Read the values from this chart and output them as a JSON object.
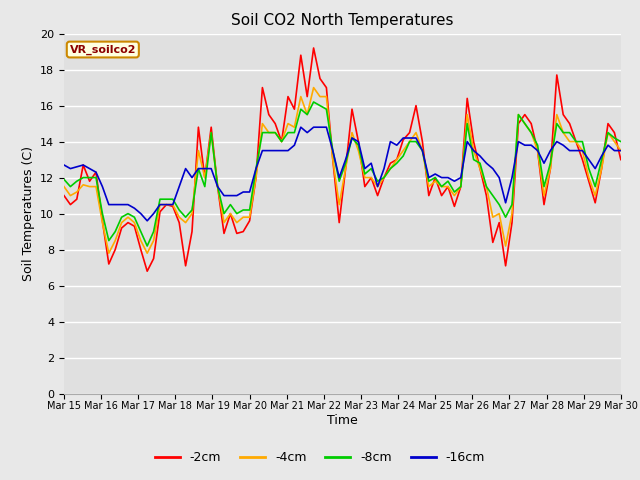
{
  "title": "Soil CO2 North Temperatures",
  "xlabel": "Time",
  "ylabel": "Soil Temperatures (C)",
  "ylim": [
    0,
    20
  ],
  "background_color": "#e8e8e8",
  "plot_bg_color": "#e0e0e0",
  "grid_color": "#ffffff",
  "legend_label": "VR_soilco2",
  "series_labels": [
    "-2cm",
    "-4cm",
    "-8cm",
    "-16cm"
  ],
  "series_colors": [
    "#ff0000",
    "#ffaa00",
    "#00cc00",
    "#0000cc"
  ],
  "x_tick_labels": [
    "Mar 15",
    "Mar 16",
    "Mar 17",
    "Mar 18",
    "Mar 19",
    "Mar 20",
    "Mar 21",
    "Mar 22",
    "Mar 23",
    "Mar 24",
    "Mar 25",
    "Mar 26",
    "Mar 27",
    "Mar 28",
    "Mar 29",
    "Mar 30"
  ],
  "data_2cm": [
    11.0,
    10.5,
    10.8,
    12.7,
    11.8,
    12.3,
    9.6,
    7.2,
    8.0,
    9.2,
    9.5,
    9.3,
    8.0,
    6.8,
    7.5,
    10.1,
    10.5,
    10.4,
    9.5,
    7.1,
    9.0,
    14.8,
    12.0,
    14.8,
    11.5,
    8.9,
    10.0,
    8.9,
    9.0,
    9.6,
    12.0,
    17.0,
    15.5,
    15.0,
    14.0,
    16.5,
    15.8,
    18.8,
    16.5,
    19.2,
    17.5,
    17.0,
    13.0,
    9.5,
    12.5,
    15.8,
    14.0,
    11.5,
    12.0,
    11.0,
    12.0,
    12.8,
    13.0,
    14.1,
    14.5,
    16.0,
    14.0,
    11.0,
    12.0,
    11.0,
    11.5,
    10.4,
    11.5,
    16.4,
    14.0,
    12.5,
    11.0,
    8.4,
    9.5,
    7.1,
    9.5,
    15.0,
    15.5,
    15.0,
    13.5,
    10.5,
    12.5,
    17.7,
    15.5,
    15.0,
    14.0,
    13.0,
    11.8,
    10.6,
    12.5,
    15.0,
    14.5,
    13.0
  ],
  "data_4cm": [
    11.5,
    11.0,
    11.2,
    11.6,
    11.5,
    11.5,
    9.5,
    7.8,
    8.5,
    9.5,
    9.8,
    9.5,
    8.5,
    7.8,
    8.5,
    10.5,
    10.5,
    10.5,
    9.8,
    9.5,
    10.0,
    13.5,
    12.0,
    14.5,
    11.5,
    9.5,
    10.0,
    9.5,
    9.8,
    9.8,
    12.0,
    15.0,
    14.5,
    14.5,
    14.0,
    15.0,
    14.8,
    16.5,
    15.5,
    17.0,
    16.5,
    16.5,
    13.0,
    10.5,
    12.5,
    14.5,
    13.5,
    12.0,
    12.0,
    11.5,
    12.0,
    12.5,
    13.0,
    13.5,
    14.0,
    14.5,
    13.5,
    11.5,
    11.8,
    11.5,
    11.5,
    11.0,
    11.5,
    15.5,
    13.5,
    12.5,
    11.5,
    9.8,
    10.0,
    8.2,
    10.0,
    15.5,
    15.0,
    14.5,
    13.5,
    11.0,
    12.5,
    15.5,
    14.5,
    14.0,
    14.0,
    13.5,
    12.0,
    11.0,
    12.5,
    14.5,
    14.0,
    13.5
  ],
  "data_8cm": [
    11.9,
    11.5,
    11.8,
    12.0,
    12.0,
    12.0,
    10.0,
    8.5,
    9.0,
    9.8,
    10.0,
    9.8,
    9.0,
    8.2,
    9.0,
    10.8,
    10.8,
    10.8,
    10.2,
    9.8,
    10.2,
    12.5,
    11.5,
    14.5,
    11.5,
    10.0,
    10.5,
    10.0,
    10.2,
    10.2,
    12.5,
    14.5,
    14.5,
    14.5,
    14.0,
    14.5,
    14.5,
    15.8,
    15.5,
    16.2,
    16.0,
    15.8,
    13.5,
    11.8,
    12.8,
    14.2,
    13.8,
    12.2,
    12.5,
    11.8,
    12.0,
    12.5,
    12.8,
    13.2,
    14.0,
    14.0,
    13.5,
    11.8,
    12.0,
    11.5,
    11.8,
    11.2,
    11.5,
    15.0,
    13.0,
    12.8,
    11.5,
    11.0,
    10.5,
    9.8,
    10.5,
    15.5,
    15.0,
    14.5,
    13.8,
    11.5,
    12.8,
    15.0,
    14.5,
    14.5,
    14.0,
    14.0,
    12.5,
    11.5,
    13.0,
    14.5,
    14.2,
    14.0
  ],
  "data_16cm": [
    12.7,
    12.5,
    12.6,
    12.7,
    12.5,
    12.3,
    11.5,
    10.5,
    10.5,
    10.5,
    10.5,
    10.3,
    10.0,
    9.6,
    10.0,
    10.5,
    10.5,
    10.5,
    11.5,
    12.5,
    12.0,
    12.5,
    12.5,
    12.5,
    11.5,
    11.0,
    11.0,
    11.0,
    11.2,
    11.2,
    12.5,
    13.5,
    13.5,
    13.5,
    13.5,
    13.5,
    13.8,
    14.8,
    14.5,
    14.8,
    14.8,
    14.8,
    13.5,
    12.0,
    13.0,
    14.2,
    14.0,
    12.5,
    12.8,
    11.5,
    12.5,
    14.0,
    13.8,
    14.2,
    14.2,
    14.2,
    13.5,
    12.0,
    12.2,
    12.0,
    12.0,
    11.8,
    12.0,
    14.0,
    13.5,
    13.2,
    12.8,
    12.5,
    12.0,
    10.6,
    12.0,
    14.0,
    13.8,
    13.8,
    13.5,
    12.8,
    13.5,
    14.0,
    13.8,
    13.5,
    13.5,
    13.5,
    13.0,
    12.5,
    13.2,
    13.8,
    13.5,
    13.5
  ]
}
